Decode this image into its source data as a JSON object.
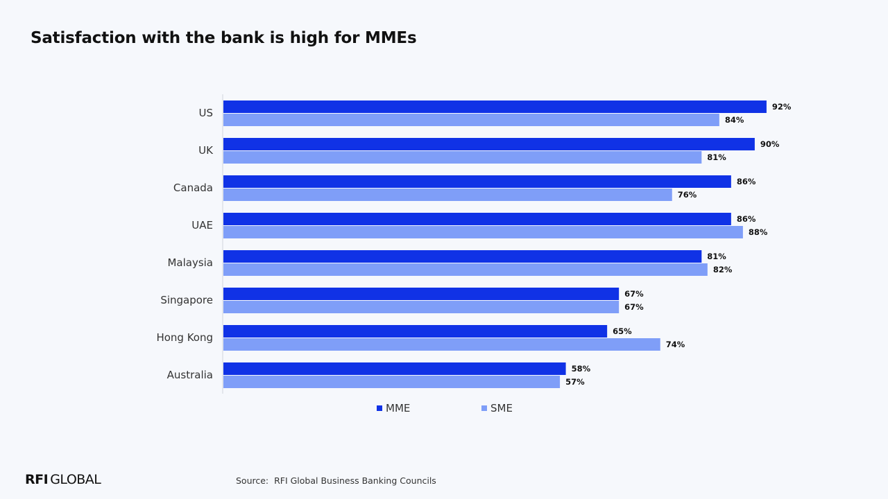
{
  "title": "Satisfaction with the bank is high for MMEs",
  "chart_data": {
    "type": "bar",
    "orientation": "horizontal",
    "categories": [
      "US",
      "UK",
      "Canada",
      "UAE",
      "Malaysia",
      "Singapore",
      "Hong Kong",
      "Australia"
    ],
    "series": [
      {
        "name": "MME",
        "color": "#1032e6",
        "values": [
          92,
          90,
          86,
          86,
          81,
          67,
          65,
          58
        ],
        "labels": [
          "92%",
          "90%",
          "86%",
          "86%",
          "81%",
          "67%",
          "65%",
          "58%"
        ]
      },
      {
        "name": "SME",
        "color": "#7f9ef8",
        "values": [
          84,
          81,
          76,
          88,
          82,
          67,
          74,
          57
        ],
        "labels": [
          "84%",
          "81%",
          "76%",
          "88%",
          "82%",
          "67%",
          "74%",
          "57%"
        ]
      }
    ],
    "xlim": [
      0,
      100
    ],
    "unit": "%",
    "grid": false,
    "legend_position": "bottom"
  },
  "legend": {
    "mme": "MME",
    "sme": "SME"
  },
  "footer": {
    "logo_strong": "RFI",
    "logo_light": "GLOBAL",
    "source": "Source:  RFI Global Business Banking Councils"
  }
}
